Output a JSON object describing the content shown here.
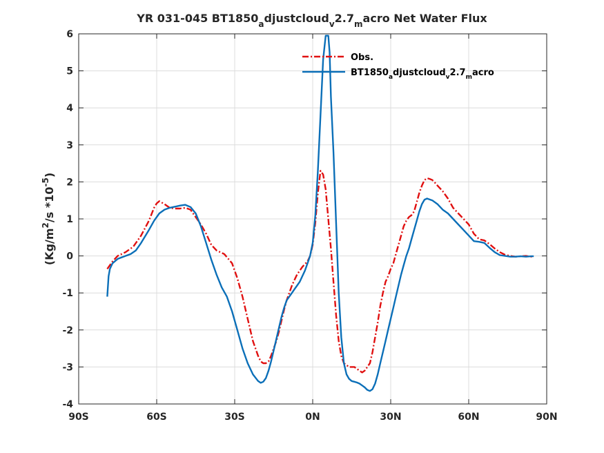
{
  "chart_data": {
    "type": "line",
    "title": {
      "parts": [
        {
          "text": "YR 031-045 BT1850",
          "sub": false
        },
        {
          "text": "a",
          "sub": true
        },
        {
          "text": "djustcloud",
          "sub": false
        },
        {
          "text": "v",
          "sub": true
        },
        {
          "text": "2.7",
          "sub": false
        },
        {
          "text": "m",
          "sub": true
        },
        {
          "text": "acro  Net Water Flux",
          "sub": false
        }
      ]
    },
    "ylabel": {
      "parts": [
        {
          "text": "(Kg/m",
          "pos": "base"
        },
        {
          "text": "2",
          "pos": "sup"
        },
        {
          "text": "/s *10",
          "pos": "base"
        },
        {
          "text": "-5",
          "pos": "sup"
        },
        {
          "text": ")",
          "pos": "base"
        }
      ]
    },
    "xlim": [
      -90,
      90
    ],
    "ylim": [
      -4,
      6
    ],
    "x_ticks": [
      {
        "value": -90,
        "label": "90S"
      },
      {
        "value": -60,
        "label": "60S"
      },
      {
        "value": -30,
        "label": "30S"
      },
      {
        "value": 0,
        "label": "0N"
      },
      {
        "value": 30,
        "label": "30N"
      },
      {
        "value": 60,
        "label": "60N"
      },
      {
        "value": 90,
        "label": "90N"
      }
    ],
    "y_ticks": [
      {
        "value": -4,
        "label": "-4"
      },
      {
        "value": -3,
        "label": "-3"
      },
      {
        "value": -2,
        "label": "-2"
      },
      {
        "value": -1,
        "label": "-1"
      },
      {
        "value": 0,
        "label": "0"
      },
      {
        "value": 1,
        "label": "1"
      },
      {
        "value": 2,
        "label": "2"
      },
      {
        "value": 3,
        "label": "3"
      },
      {
        "value": 4,
        "label": "4"
      },
      {
        "value": 5,
        "label": "5"
      },
      {
        "value": 6,
        "label": "6"
      }
    ],
    "grid": true,
    "legend_position": "top-right",
    "series": [
      {
        "name": "Obs.",
        "legend_parts": [
          {
            "text": "Obs.",
            "sub": false
          }
        ],
        "color": "#e01010",
        "dash": "dashdot",
        "x": [
          -79,
          -77,
          -75,
          -72,
          -69,
          -66,
          -63,
          -61,
          -60,
          -59,
          -57,
          -55,
          -53,
          -51,
          -49,
          -47,
          -46,
          -45,
          -43,
          -41,
          -39,
          -37,
          -34,
          -31,
          -29,
          -27,
          -25,
          -23,
          -21,
          -20,
          -19,
          -18,
          -17,
          -16,
          -15,
          -14,
          -13,
          -12,
          -11,
          -10,
          -9,
          -8,
          -7,
          -6,
          -5,
          -4,
          -3,
          -2,
          -1,
          0,
          1,
          2,
          3,
          4,
          5,
          6,
          7,
          8,
          9,
          10,
          11,
          12,
          13,
          14,
          15,
          16,
          17,
          18,
          19,
          20,
          21,
          22,
          23,
          24,
          25,
          26,
          27,
          28,
          29,
          30,
          31,
          32,
          33,
          34,
          35,
          36,
          37,
          38,
          39,
          40,
          41,
          42,
          43,
          44,
          45,
          46,
          47,
          48,
          50,
          52,
          54,
          56,
          58,
          60,
          62,
          64,
          66,
          68,
          70,
          72,
          74,
          76,
          78,
          80,
          82,
          84,
          85
        ],
        "y": [
          -0.35,
          -0.15,
          0.0,
          0.1,
          0.25,
          0.55,
          0.95,
          1.3,
          1.42,
          1.48,
          1.4,
          1.3,
          1.28,
          1.28,
          1.3,
          1.25,
          1.15,
          1.05,
          0.85,
          0.6,
          0.3,
          0.15,
          0.05,
          -0.2,
          -0.6,
          -1.1,
          -1.7,
          -2.3,
          -2.7,
          -2.85,
          -2.9,
          -2.9,
          -2.85,
          -2.7,
          -2.5,
          -2.3,
          -2.05,
          -1.75,
          -1.45,
          -1.2,
          -1.0,
          -0.8,
          -0.65,
          -0.5,
          -0.4,
          -0.3,
          -0.22,
          -0.15,
          0.0,
          0.3,
          0.9,
          1.7,
          2.3,
          2.2,
          1.8,
          1.0,
          0.2,
          -0.7,
          -1.6,
          -2.3,
          -2.7,
          -2.9,
          -2.95,
          -3.0,
          -3.0,
          -3.0,
          -3.05,
          -3.1,
          -3.15,
          -3.1,
          -3.0,
          -2.9,
          -2.6,
          -2.2,
          -1.8,
          -1.35,
          -1.0,
          -0.7,
          -0.55,
          -0.35,
          -0.2,
          0.05,
          0.3,
          0.55,
          0.8,
          0.95,
          1.05,
          1.1,
          1.2,
          1.45,
          1.7,
          1.9,
          2.05,
          2.1,
          2.08,
          2.05,
          1.98,
          1.9,
          1.75,
          1.55,
          1.3,
          1.15,
          1.0,
          0.85,
          0.6,
          0.45,
          0.42,
          0.32,
          0.2,
          0.1,
          0.03,
          0.0,
          -0.02,
          -0.01,
          0.0,
          -0.02,
          0.0
        ]
      },
      {
        "name": "BT1850adjustcloudv2.7macro",
        "legend_parts": [
          {
            "text": "BT1850",
            "sub": false
          },
          {
            "text": "a",
            "sub": true
          },
          {
            "text": "djustcloud",
            "sub": false
          },
          {
            "text": "v",
            "sub": true
          },
          {
            "text": "2.7",
            "sub": false
          },
          {
            "text": "m",
            "sub": true
          },
          {
            "text": "acro",
            "sub": false
          }
        ],
        "color": "#0b6fb8",
        "dash": "solid",
        "x": [
          -79,
          -78.5,
          -78,
          -77,
          -75,
          -72,
          -70,
          -68,
          -66,
          -63,
          -61,
          -59,
          -57,
          -55,
          -53,
          -51,
          -49,
          -47,
          -45,
          -43,
          -41,
          -39,
          -37,
          -35,
          -33,
          -31,
          -29,
          -27,
          -25,
          -23,
          -21,
          -20,
          -19,
          -18,
          -17,
          -16,
          -15,
          -14,
          -13,
          -12,
          -11,
          -10,
          -9,
          -8,
          -7,
          -6,
          -5,
          -4,
          -3,
          -2,
          -1,
          0,
          1,
          2,
          3,
          4,
          5,
          6,
          6.5,
          7,
          8,
          9,
          10,
          11,
          12,
          13,
          14,
          15,
          16,
          17,
          18,
          19,
          20,
          21,
          22,
          23,
          24,
          25,
          26,
          27,
          28,
          29,
          30,
          31,
          32,
          33,
          34,
          35,
          36,
          37,
          38,
          39,
          40,
          41,
          42,
          43,
          44,
          46,
          48,
          50,
          52,
          54,
          56,
          58,
          60,
          62,
          64,
          66,
          68,
          70,
          72,
          74,
          76,
          78,
          80,
          82,
          84,
          85
        ],
        "y": [
          -1.1,
          -0.55,
          -0.35,
          -0.2,
          -0.08,
          0.0,
          0.05,
          0.15,
          0.35,
          0.7,
          0.95,
          1.15,
          1.25,
          1.3,
          1.33,
          1.36,
          1.38,
          1.32,
          1.15,
          0.8,
          0.35,
          -0.1,
          -0.5,
          -0.85,
          -1.1,
          -1.5,
          -2.0,
          -2.5,
          -2.9,
          -3.2,
          -3.38,
          -3.43,
          -3.4,
          -3.3,
          -3.1,
          -2.85,
          -2.55,
          -2.25,
          -1.95,
          -1.65,
          -1.4,
          -1.2,
          -1.1,
          -1.0,
          -0.9,
          -0.8,
          -0.7,
          -0.55,
          -0.4,
          -0.2,
          0.0,
          0.35,
          1.1,
          2.3,
          3.8,
          5.3,
          5.95,
          5.95,
          5.5,
          4.3,
          2.8,
          0.9,
          -1.0,
          -2.2,
          -2.9,
          -3.2,
          -3.32,
          -3.38,
          -3.4,
          -3.42,
          -3.45,
          -3.5,
          -3.55,
          -3.62,
          -3.65,
          -3.6,
          -3.45,
          -3.2,
          -2.9,
          -2.6,
          -2.3,
          -2.0,
          -1.7,
          -1.4,
          -1.1,
          -0.8,
          -0.5,
          -0.25,
          0.0,
          0.2,
          0.45,
          0.7,
          0.95,
          1.2,
          1.4,
          1.52,
          1.55,
          1.5,
          1.4,
          1.25,
          1.15,
          1.0,
          0.85,
          0.7,
          0.55,
          0.4,
          0.38,
          0.35,
          0.22,
          0.1,
          0.02,
          0.0,
          -0.02,
          -0.02,
          -0.01,
          -0.02,
          -0.01,
          -0.01
        ]
      }
    ]
  }
}
